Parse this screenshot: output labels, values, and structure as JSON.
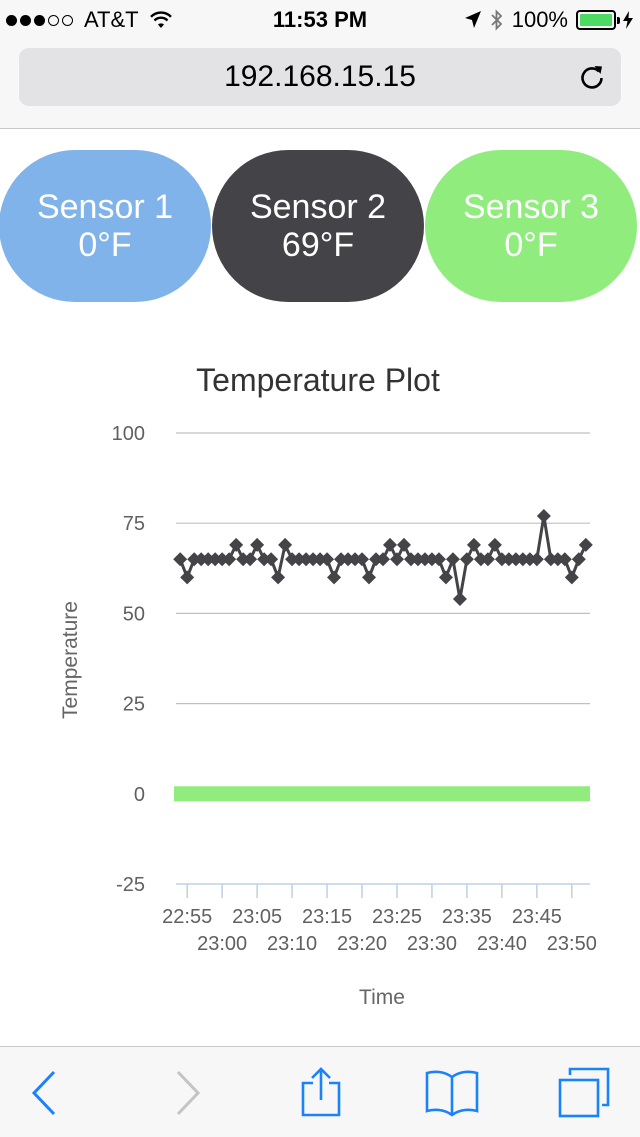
{
  "status_bar": {
    "carrier": "AT&T",
    "time": "11:53 PM",
    "battery": "100%",
    "signal_dots_filled": 3,
    "signal_dots_total": 5,
    "battery_level": 1.0,
    "battery_color": "#4cd964"
  },
  "address_bar": {
    "url": "192.168.15.15",
    "reload_icon": "reload-icon"
  },
  "sensors": [
    {
      "name": "Sensor 1",
      "value": "0°F",
      "color": "#7fb3ea"
    },
    {
      "name": "Sensor 2",
      "value": "69°F",
      "color": "#434348"
    },
    {
      "name": "Sensor 3",
      "value": "0°F",
      "color": "#90ed7d"
    }
  ],
  "chart_data": {
    "type": "line",
    "title": "Temperature Plot",
    "xlabel": "Time",
    "ylabel": "Temperature",
    "ylim": [
      -25,
      100
    ],
    "yticks": [
      100,
      75,
      50,
      25,
      0,
      -25
    ],
    "xticks": [
      "22:55",
      "23:00",
      "23:05",
      "23:10",
      "23:15",
      "23:20",
      "23:25",
      "23:30",
      "23:35",
      "23:40",
      "23:45",
      "23:50"
    ],
    "grid": true,
    "legend": "none",
    "series": [
      {
        "color": "#434348",
        "marker": "diamond",
        "x": [
          "22:54",
          "22:55",
          "22:56",
          "22:57",
          "22:58",
          "22:59",
          "23:00",
          "23:01",
          "23:02",
          "23:03",
          "23:04",
          "23:05",
          "23:06",
          "23:07",
          "23:08",
          "23:09",
          "23:10",
          "23:11",
          "23:12",
          "23:13",
          "23:14",
          "23:15",
          "23:16",
          "23:17",
          "23:18",
          "23:19",
          "23:20",
          "23:21",
          "23:22",
          "23:23",
          "23:24",
          "23:25",
          "23:26",
          "23:27",
          "23:28",
          "23:29",
          "23:30",
          "23:31",
          "23:32",
          "23:33",
          "23:34",
          "23:35",
          "23:36",
          "23:37",
          "23:38",
          "23:39",
          "23:40",
          "23:41",
          "23:42",
          "23:43",
          "23:44",
          "23:45",
          "23:46",
          "23:47",
          "23:48",
          "23:49",
          "23:50",
          "23:51",
          "23:52"
        ],
        "values": [
          65,
          60,
          65,
          65,
          65,
          65,
          65,
          65,
          69,
          65,
          65,
          69,
          65,
          65,
          60,
          69,
          65,
          65,
          65,
          65,
          65,
          65,
          60,
          65,
          65,
          65,
          65,
          60,
          65,
          65,
          69,
          65,
          69,
          65,
          65,
          65,
          65,
          65,
          60,
          65,
          54,
          65,
          69,
          65,
          65,
          69,
          65,
          65,
          65,
          65,
          65,
          65,
          77,
          65,
          65,
          65,
          60,
          65,
          69
        ]
      },
      {
        "color": "#90ed7d",
        "marker": "none",
        "x": [
          "22:54",
          "23:52"
        ],
        "values": [
          0,
          0
        ]
      }
    ]
  },
  "toolbar": {
    "back_icon": "back-icon",
    "forward_icon": "forward-icon",
    "share_icon": "share-icon",
    "bookmarks_icon": "bookmarks-icon",
    "tabs_icon": "tabs-icon",
    "accent": "#1a82fb"
  }
}
